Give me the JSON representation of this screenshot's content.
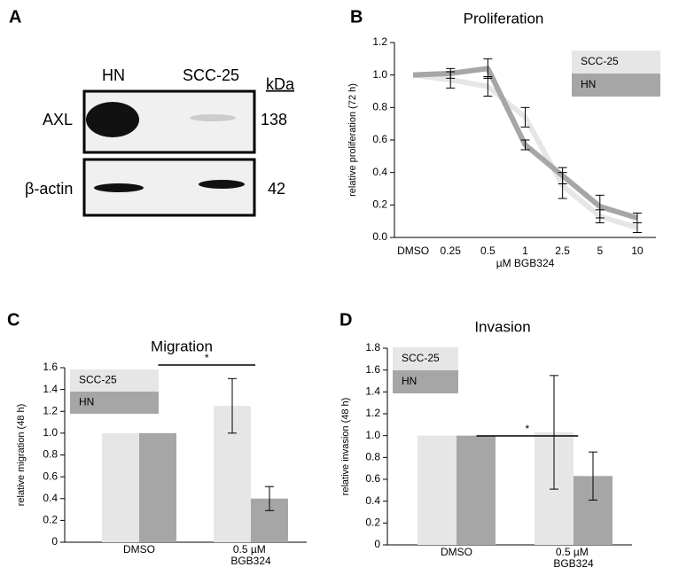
{
  "blot": {
    "label": "A",
    "lanes": [
      "HN",
      "SCC-25"
    ],
    "unit": "kDa",
    "rows": [
      {
        "name": "AXL",
        "size": "138"
      },
      {
        "name": "β-actin",
        "size": "42"
      }
    ]
  },
  "chart_data": [
    {
      "type": "line",
      "label": "B",
      "title": "Proliferation",
      "x_label": "µM BGB324",
      "y_label": "relative proliferation (72 h)",
      "categories": [
        "DMSO",
        "0.25",
        "0.5",
        "1",
        "2.5",
        "5",
        "10"
      ],
      "series": [
        {
          "name": "SCC-25",
          "color": "#e6e6e6",
          "values": [
            1.0,
            0.97,
            0.93,
            0.74,
            0.32,
            0.13,
            0.06
          ],
          "errors": [
            null,
            0.05,
            0.06,
            0.06,
            0.08,
            0.04,
            0.03
          ]
        },
        {
          "name": "HN",
          "color": "#a6a6a6",
          "values": [
            1.0,
            1.01,
            1.04,
            0.57,
            0.38,
            0.19,
            0.12
          ],
          "errors": [
            null,
            0.03,
            0.06,
            0.03,
            0.05,
            0.07,
            0.03
          ]
        }
      ],
      "ylim": [
        0,
        1.2
      ],
      "yticks": [
        {
          "value": 0,
          "label": "0.0"
        },
        0.2,
        0.4,
        0.6,
        0.8,
        {
          "value": 1,
          "label": "1.0"
        },
        1.2
      ],
      "legend": "upper right"
    },
    {
      "type": "bar",
      "label": "C",
      "title": "Migration",
      "y_label": "relative migration (48 h)",
      "categories": [
        "DMSO",
        "0.5 µM BGB324"
      ],
      "series": [
        {
          "name": "SCC-25",
          "color": "#e6e6e6",
          "values": [
            1.0,
            1.25
          ],
          "errors": [
            null,
            0.25
          ]
        },
        {
          "name": "HN",
          "color": "#a6a6a6",
          "values": [
            1.0,
            0.4
          ],
          "errors": [
            null,
            0.11
          ]
        }
      ],
      "ylim": [
        0,
        1.6
      ],
      "yticks": [
        0,
        0.2,
        0.4,
        0.6,
        0.8,
        {
          "value": 1,
          "label": "1.0"
        },
        1.2,
        1.4,
        1.6
      ],
      "legend": "upper left",
      "annotation": "*"
    },
    {
      "type": "bar",
      "label": "D",
      "title": "Invasion",
      "y_label": "relative invasion (48 h)",
      "categories": [
        "DMSO",
        "0.5 µM BGB324"
      ],
      "series": [
        {
          "name": "SCC-25",
          "color": "#e6e6e6",
          "values": [
            1.0,
            1.03
          ],
          "errors": [
            null,
            0.52
          ]
        },
        {
          "name": "HN",
          "color": "#a6a6a6",
          "values": [
            1.0,
            0.63
          ],
          "errors": [
            null,
            0.22
          ]
        }
      ],
      "ylim": [
        0,
        1.8
      ],
      "yticks": [
        0,
        0.2,
        0.4,
        0.6,
        0.8,
        {
          "value": 1,
          "label": "1.0"
        },
        1.2,
        1.4,
        1.6,
        1.8
      ],
      "legend": "upper left",
      "annotation": "*"
    }
  ]
}
